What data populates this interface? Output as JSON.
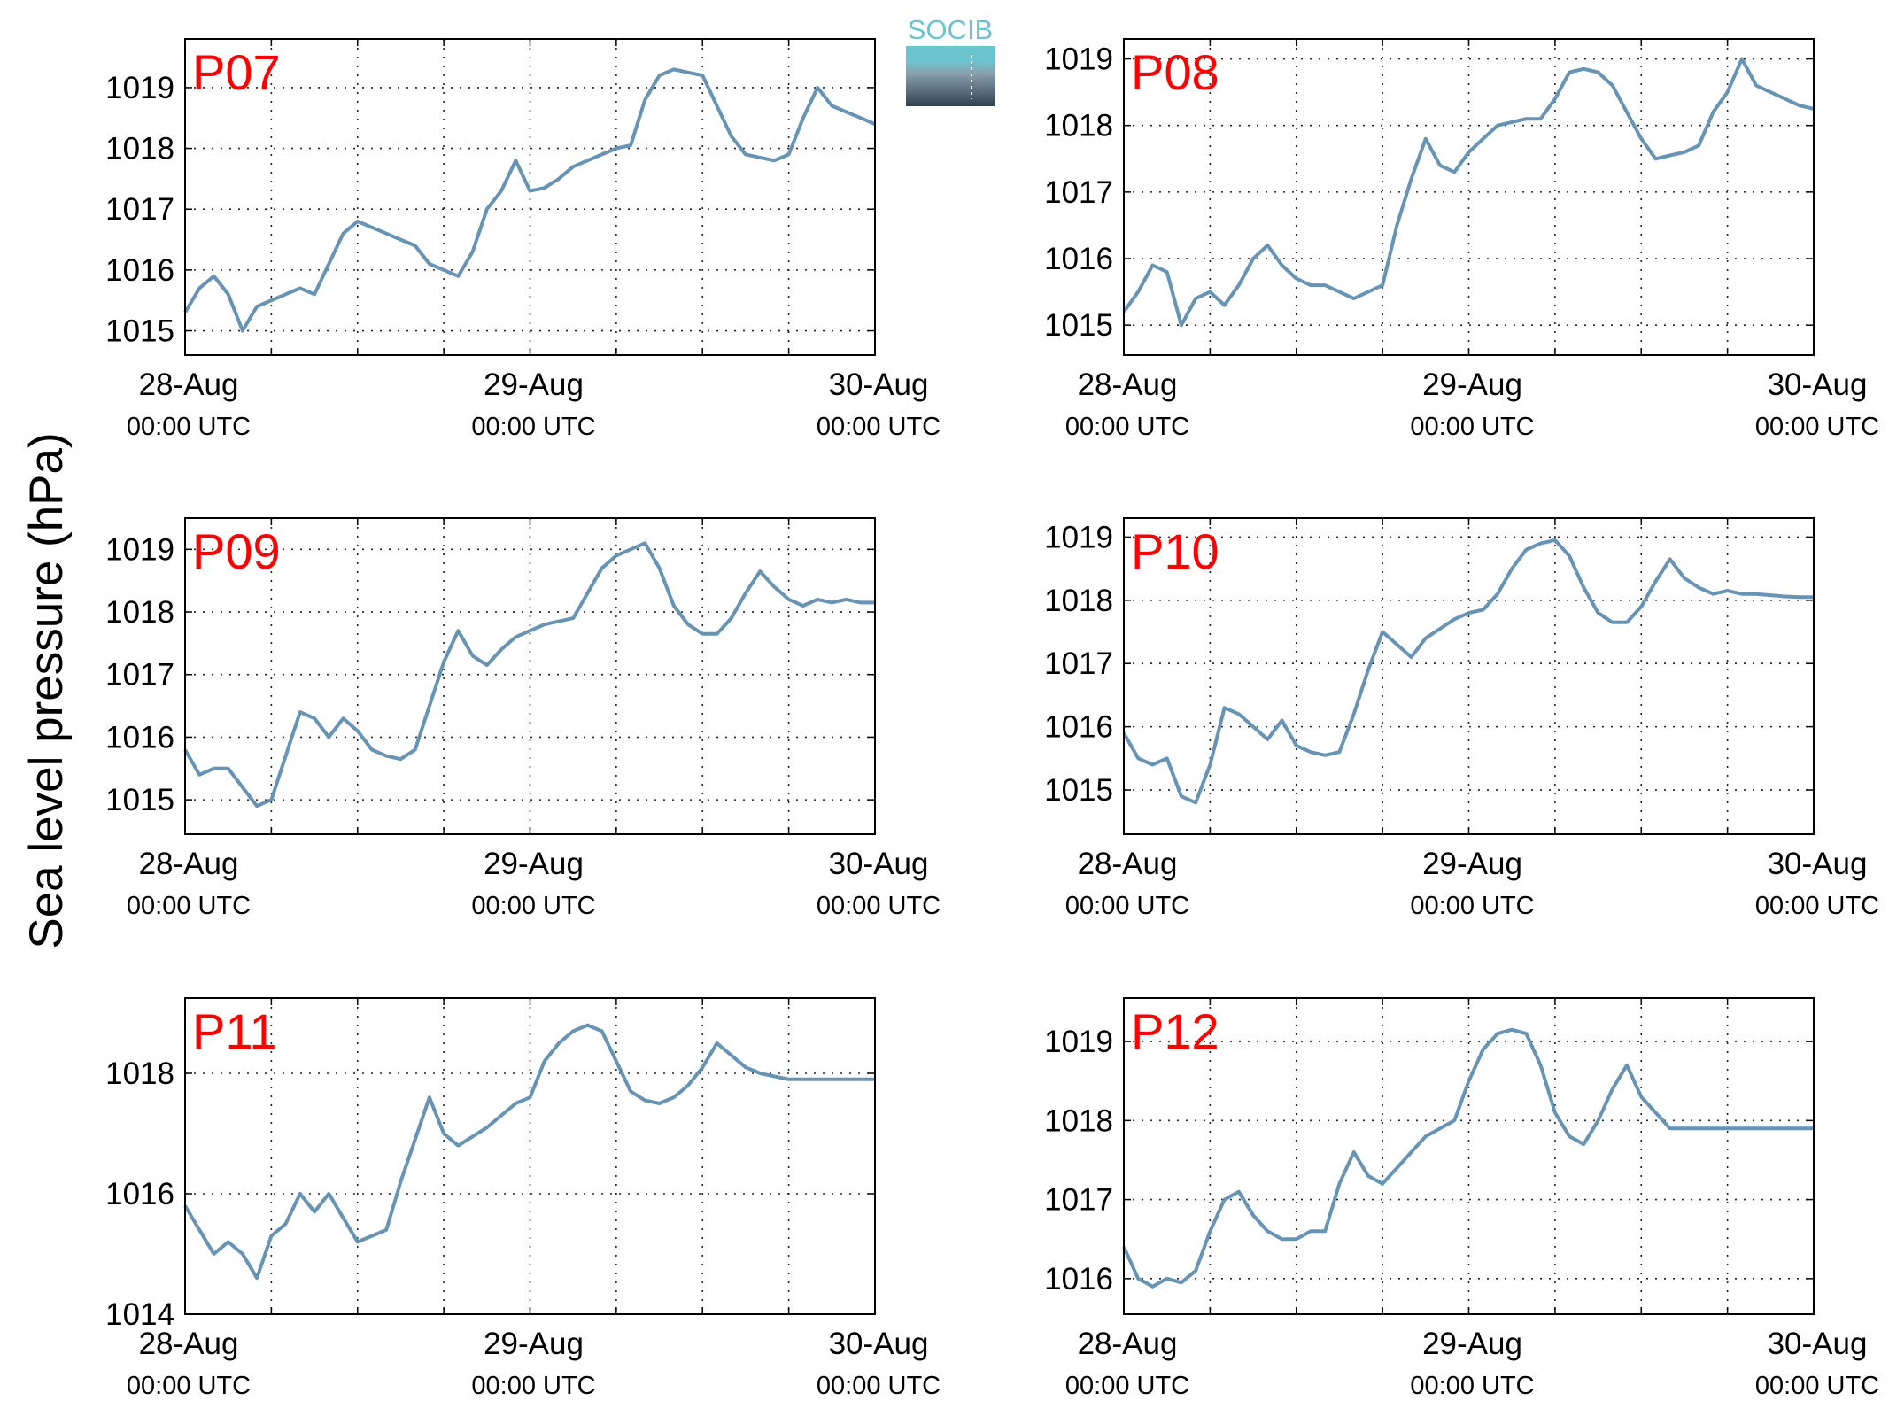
{
  "ylabel": "Sea level pressure (hPa)",
  "logo": {
    "text": "SOCIB",
    "text_color": "#6cc3d0",
    "top_color": "#6cc3d0",
    "bottom_color": "#2f4150"
  },
  "colors": {
    "series": "#6793b5",
    "label": "#ff0000"
  },
  "chart_data": [
    {
      "type": "line",
      "label": "P07",
      "grid": true,
      "xlim": [
        "2015-08-28 00:00",
        "2015-08-30 00:00"
      ],
      "xticks": [
        {
          "date": "28-Aug",
          "time": "00:00 UTC"
        },
        {
          "date": "29-Aug",
          "time": "00:00 UTC"
        },
        {
          "date": "30-Aug",
          "time": "00:00 UTC"
        }
      ],
      "ylim": [
        1014.6,
        1019.8
      ],
      "yticks": [
        1015,
        1016,
        1017,
        1018,
        1019
      ],
      "x_hours": [
        0,
        1,
        2,
        3,
        4,
        5,
        6,
        7,
        8,
        9,
        10,
        11,
        12,
        13,
        14,
        15,
        16,
        17,
        18,
        19,
        20,
        21,
        22,
        23,
        24,
        25,
        26,
        27,
        28,
        29,
        30,
        31,
        32,
        33,
        34,
        35,
        36,
        37,
        38,
        39,
        40,
        41,
        42,
        43,
        44,
        45,
        46,
        47,
        48
      ],
      "values": [
        1015.3,
        1015.7,
        1015.9,
        1015.6,
        1015.0,
        1015.4,
        1015.5,
        1015.6,
        1015.7,
        1015.6,
        1016.1,
        1016.6,
        1016.8,
        1016.7,
        1016.6,
        1016.5,
        1016.4,
        1016.1,
        1016.0,
        1015.9,
        1016.3,
        1017.0,
        1017.3,
        1017.8,
        1017.3,
        1017.35,
        1017.5,
        1017.7,
        1017.8,
        1017.9,
        1018.0,
        1018.05,
        1018.8,
        1019.2,
        1019.3,
        1019.25,
        1019.2,
        1018.7,
        1018.2,
        1017.9,
        1017.85,
        1017.8,
        1017.9,
        1018.5,
        1019.0,
        1018.7,
        1018.6,
        1018.5,
        1018.4
      ]
    },
    {
      "type": "line",
      "label": "P08",
      "grid": true,
      "xlim": [
        "2015-08-28 00:00",
        "2015-08-30 00:00"
      ],
      "xticks": [
        {
          "date": "28-Aug",
          "time": "00:00 UTC"
        },
        {
          "date": "29-Aug",
          "time": "00:00 UTC"
        },
        {
          "date": "30-Aug",
          "time": "00:00 UTC"
        }
      ],
      "ylim": [
        1014.55,
        1019.3
      ],
      "yticks": [
        1015,
        1016,
        1017,
        1018,
        1019
      ],
      "x_hours": [
        0,
        1,
        2,
        3,
        4,
        5,
        6,
        7,
        8,
        9,
        10,
        11,
        12,
        13,
        14,
        15,
        16,
        17,
        18,
        19,
        20,
        21,
        22,
        23,
        24,
        25,
        26,
        27,
        28,
        29,
        30,
        31,
        32,
        33,
        34,
        35,
        36,
        37,
        38,
        39,
        40,
        41,
        42,
        43,
        44,
        45,
        46,
        47,
        48
      ],
      "values": [
        1015.2,
        1015.5,
        1015.9,
        1015.8,
        1015.0,
        1015.4,
        1015.5,
        1015.3,
        1015.6,
        1016.0,
        1016.2,
        1015.9,
        1015.7,
        1015.6,
        1015.6,
        1015.5,
        1015.4,
        1015.5,
        1015.6,
        1016.5,
        1017.2,
        1017.8,
        1017.4,
        1017.3,
        1017.6,
        1017.8,
        1018.0,
        1018.05,
        1018.1,
        1018.1,
        1018.4,
        1018.8,
        1018.85,
        1018.8,
        1018.6,
        1018.2,
        1017.8,
        1017.5,
        1017.55,
        1017.6,
        1017.7,
        1018.2,
        1018.5,
        1019.0,
        1018.6,
        1018.5,
        1018.4,
        1018.3,
        1018.25
      ]
    },
    {
      "type": "line",
      "label": "P09",
      "grid": true,
      "xlim": [
        "2015-08-28 00:00",
        "2015-08-30 00:00"
      ],
      "xticks": [
        {
          "date": "28-Aug",
          "time": "00:00 UTC"
        },
        {
          "date": "29-Aug",
          "time": "00:00 UTC"
        },
        {
          "date": "30-Aug",
          "time": "00:00 UTC"
        }
      ],
      "ylim": [
        1014.45,
        1019.5
      ],
      "yticks": [
        1015,
        1016,
        1017,
        1018,
        1019
      ],
      "x_hours": [
        0,
        1,
        2,
        3,
        4,
        5,
        6,
        7,
        8,
        9,
        10,
        11,
        12,
        13,
        14,
        15,
        16,
        17,
        18,
        19,
        20,
        21,
        22,
        23,
        24,
        25,
        26,
        27,
        28,
        29,
        30,
        31,
        32,
        33,
        34,
        35,
        36,
        37,
        38,
        39,
        40,
        41,
        42,
        43,
        44,
        45,
        46,
        47,
        48
      ],
      "values": [
        1015.8,
        1015.4,
        1015.5,
        1015.5,
        1015.2,
        1014.9,
        1015.0,
        1015.7,
        1016.4,
        1016.3,
        1016.0,
        1016.3,
        1016.1,
        1015.8,
        1015.7,
        1015.65,
        1015.8,
        1016.5,
        1017.2,
        1017.7,
        1017.3,
        1017.15,
        1017.4,
        1017.6,
        1017.7,
        1017.8,
        1017.85,
        1017.9,
        1018.3,
        1018.7,
        1018.9,
        1019.0,
        1019.1,
        1018.7,
        1018.1,
        1017.8,
        1017.65,
        1017.65,
        1017.9,
        1018.3,
        1018.65,
        1018.4,
        1018.2,
        1018.1,
        1018.2,
        1018.15,
        1018.2,
        1018.15,
        1018.15
      ]
    },
    {
      "type": "line",
      "label": "P10",
      "grid": true,
      "xlim": [
        "2015-08-28 00:00",
        "2015-08-30 00:00"
      ],
      "xticks": [
        {
          "date": "28-Aug",
          "time": "00:00 UTC"
        },
        {
          "date": "29-Aug",
          "time": "00:00 UTC"
        },
        {
          "date": "30-Aug",
          "time": "00:00 UTC"
        }
      ],
      "ylim": [
        1014.3,
        1019.3
      ],
      "yticks": [
        1015,
        1016,
        1017,
        1018,
        1019
      ],
      "x_hours": [
        0,
        1,
        2,
        3,
        4,
        5,
        6,
        7,
        8,
        9,
        10,
        11,
        12,
        13,
        14,
        15,
        16,
        17,
        18,
        19,
        20,
        21,
        22,
        23,
        24,
        25,
        26,
        27,
        28,
        29,
        30,
        31,
        32,
        33,
        34,
        35,
        36,
        37,
        38,
        39,
        40,
        41,
        42,
        43,
        44,
        45,
        46,
        47,
        48
      ],
      "values": [
        1015.9,
        1015.5,
        1015.4,
        1015.5,
        1014.9,
        1014.8,
        1015.4,
        1016.3,
        1016.2,
        1016.0,
        1015.8,
        1016.1,
        1015.7,
        1015.6,
        1015.55,
        1015.6,
        1016.2,
        1016.9,
        1017.5,
        1017.3,
        1017.1,
        1017.4,
        1017.55,
        1017.7,
        1017.8,
        1017.85,
        1018.1,
        1018.5,
        1018.8,
        1018.9,
        1018.95,
        1018.7,
        1018.2,
        1017.8,
        1017.65,
        1017.65,
        1017.9,
        1018.3,
        1018.65,
        1018.35,
        1018.2,
        1018.1,
        1018.15,
        1018.1,
        1018.1,
        1018.08,
        1018.06,
        1018.05,
        1018.05
      ]
    },
    {
      "type": "line",
      "label": "P11",
      "grid": true,
      "xlim": [
        "2015-08-28 00:00",
        "2015-08-30 00:00"
      ],
      "xticks": [
        {
          "date": "28-Aug",
          "time": "00:00 UTC"
        },
        {
          "date": "29-Aug",
          "time": "00:00 UTC"
        },
        {
          "date": "30-Aug",
          "time": "00:00 UTC"
        }
      ],
      "ylim": [
        1014,
        1019.25
      ],
      "yticks": [
        1014,
        1016,
        1018
      ],
      "x_hours": [
        0,
        1,
        2,
        3,
        4,
        5,
        6,
        7,
        8,
        9,
        10,
        11,
        12,
        13,
        14,
        15,
        16,
        17,
        18,
        19,
        20,
        21,
        22,
        23,
        24,
        25,
        26,
        27,
        28,
        29,
        30,
        31,
        32,
        33,
        34,
        35,
        36,
        37,
        38,
        39,
        40,
        41,
        42,
        43,
        44,
        45,
        46,
        47,
        48
      ],
      "values": [
        1015.8,
        1015.4,
        1015.0,
        1015.2,
        1015.0,
        1014.6,
        1015.3,
        1015.5,
        1016.0,
        1015.7,
        1016.0,
        1015.6,
        1015.2,
        1015.3,
        1015.4,
        1016.2,
        1016.9,
        1017.6,
        1017.0,
        1016.8,
        1016.95,
        1017.1,
        1017.3,
        1017.5,
        1017.6,
        1018.2,
        1018.5,
        1018.7,
        1018.8,
        1018.7,
        1018.2,
        1017.7,
        1017.55,
        1017.5,
        1017.6,
        1017.8,
        1018.1,
        1018.5,
        1018.3,
        1018.1,
        1018.0,
        1017.95,
        1017.9,
        1017.9,
        1017.9,
        1017.9,
        1017.9,
        1017.9,
        1017.9
      ]
    },
    {
      "type": "line",
      "label": "P12",
      "grid": true,
      "xlim": [
        "2015-08-28 00:00",
        "2015-08-30 00:00"
      ],
      "xticks": [
        {
          "date": "28-Aug",
          "time": "00:00 UTC"
        },
        {
          "date": "29-Aug",
          "time": "00:00 UTC"
        },
        {
          "date": "30-Aug",
          "time": "00:00 UTC"
        }
      ],
      "ylim": [
        1015.55,
        1019.55
      ],
      "yticks": [
        1016,
        1017,
        1018,
        1019
      ],
      "x_hours": [
        0,
        1,
        2,
        3,
        4,
        5,
        6,
        7,
        8,
        9,
        10,
        11,
        12,
        13,
        14,
        15,
        16,
        17,
        18,
        19,
        20,
        21,
        22,
        23,
        24,
        25,
        26,
        27,
        28,
        29,
        30,
        31,
        32,
        33,
        34,
        35,
        36,
        37,
        38,
        39,
        40,
        41,
        42,
        43,
        44,
        45,
        46,
        47,
        48
      ],
      "values": [
        1016.4,
        1016.0,
        1015.9,
        1016.0,
        1015.95,
        1016.1,
        1016.6,
        1017.0,
        1017.1,
        1016.8,
        1016.6,
        1016.5,
        1016.5,
        1016.6,
        1016.6,
        1017.2,
        1017.6,
        1017.3,
        1017.2,
        1017.4,
        1017.6,
        1017.8,
        1017.9,
        1018.0,
        1018.5,
        1018.9,
        1019.1,
        1019.15,
        1019.1,
        1018.7,
        1018.1,
        1017.8,
        1017.7,
        1018.0,
        1018.4,
        1018.7,
        1018.3,
        1018.1,
        1017.9,
        1017.9,
        1017.9,
        1017.9,
        1017.9,
        1017.9,
        1017.9,
        1017.9,
        1017.9,
        1017.9,
        1017.9
      ]
    }
  ]
}
